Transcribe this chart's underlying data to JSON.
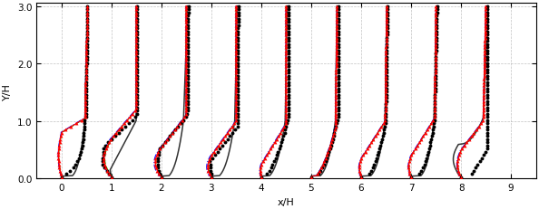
{
  "title": "",
  "xlabel": "x/H",
  "ylabel": "Y/H",
  "xlim": [
    -0.5,
    9.5
  ],
  "ylim": [
    0.0,
    3.05
  ],
  "x_ticks": [
    0,
    1,
    2,
    3,
    4,
    5,
    6,
    7,
    8,
    9
  ],
  "y_ticks": [
    0.0,
    1.0,
    2.0,
    3.0
  ],
  "stations": [
    0,
    1,
    2,
    3,
    4,
    5,
    6,
    7,
    8
  ],
  "profile_scale": 0.52,
  "colors": {
    "exp": "#000000",
    "black_solid": "#444444",
    "red_triangle": "#ff0000",
    "green_dash": "#00bb00",
    "blue_dashdot": "#0000ff",
    "red_solid": "#ff0000"
  },
  "background": "#ffffff",
  "grid_color": "#999999",
  "figsize": [
    5.94,
    2.32
  ],
  "dpi": 100
}
